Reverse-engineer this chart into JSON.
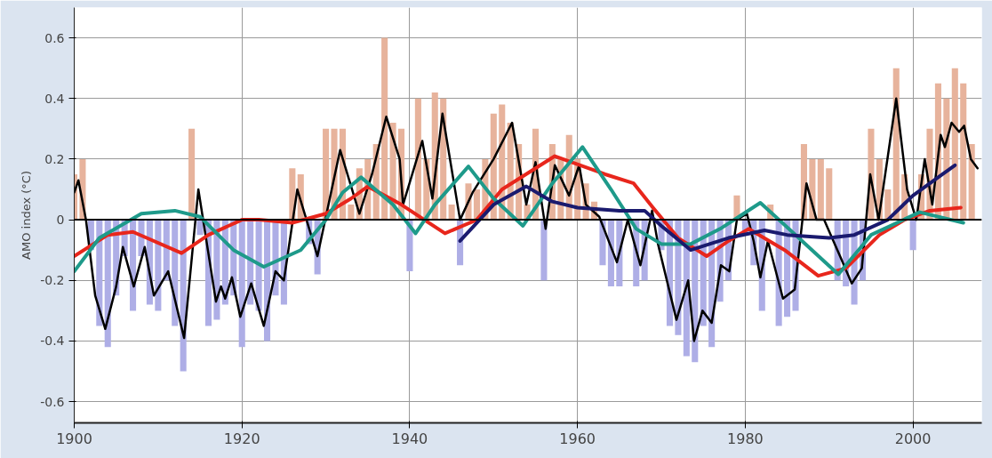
{
  "chart_data": {
    "type": "line",
    "ylabel": "AMO index (°C)",
    "xlim": [
      1900,
      2008.2
    ],
    "ylim": [
      -0.67,
      0.7
    ],
    "xticks": [
      1900,
      1920,
      1940,
      1960,
      1980,
      2000
    ],
    "yticks": [
      {
        "value": -0.6,
        "label": "-0.6"
      },
      {
        "value": -0.4,
        "label": "-0.4"
      },
      {
        "value": -0.2,
        "label": "-0.2"
      },
      0,
      0.2,
      0.4,
      0.6
    ],
    "grid": true,
    "ref_lines": [
      {
        "axis": "y",
        "value": 0,
        "color": "#000000"
      }
    ],
    "series": [
      {
        "type": "bar",
        "x": [
          1900,
          1901,
          1902,
          1903,
          1904,
          1905,
          1906,
          1907,
          1908,
          1909,
          1910,
          1911,
          1912,
          1913,
          1914,
          1915,
          1916,
          1917,
          1918,
          1919,
          1920,
          1921,
          1922,
          1923,
          1924,
          1925,
          1926,
          1927,
          1928,
          1929,
          1930,
          1931,
          1932,
          1933,
          1934,
          1935,
          1936,
          1937,
          1938,
          1939,
          1940,
          1941,
          1942,
          1943,
          1944,
          1945,
          1946,
          1947,
          1948,
          1949,
          1950,
          1951,
          1952,
          1953,
          1954,
          1955,
          1956,
          1957,
          1958,
          1959,
          1960,
          1961,
          1962,
          1963,
          1964,
          1965,
          1966,
          1967,
          1968,
          1969,
          1970,
          1971,
          1972,
          1973,
          1974,
          1975,
          1976,
          1977,
          1978,
          1979,
          1980,
          1981,
          1982,
          1983,
          1984,
          1985,
          1986,
          1987,
          1988,
          1989,
          1990,
          1991,
          1992,
          1993,
          1994,
          1995,
          1996,
          1997,
          1998,
          1999,
          2000,
          2001,
          2002,
          2003,
          2004,
          2005,
          2006,
          2007
        ],
        "values": [
          0.15,
          0.2,
          -0.1,
          -0.35,
          -0.42,
          -0.25,
          -0.12,
          -0.3,
          -0.12,
          -0.28,
          -0.3,
          -0.2,
          -0.35,
          -0.5,
          0.3,
          -0.05,
          -0.35,
          -0.33,
          -0.28,
          -0.25,
          -0.42,
          -0.28,
          -0.3,
          -0.4,
          -0.25,
          -0.28,
          0.17,
          0.15,
          -0.08,
          -0.18,
          0.3,
          0.3,
          0.3,
          0.05,
          0.17,
          0.2,
          0.25,
          0.6,
          0.32,
          0.3,
          -0.17,
          0.4,
          0.2,
          0.42,
          0.4,
          0.05,
          -0.15,
          0.12,
          0.1,
          0.2,
          0.35,
          0.38,
          0.32,
          0.25,
          0.05,
          0.3,
          -0.2,
          0.25,
          0.2,
          0.28,
          0.2,
          0.12,
          0.06,
          -0.15,
          -0.22,
          -0.22,
          null,
          -0.22,
          -0.2,
          null,
          -0.1,
          -0.35,
          -0.38,
          -0.45,
          -0.47,
          -0.35,
          -0.42,
          -0.27,
          -0.2,
          0.08,
          -0.05,
          -0.15,
          -0.3,
          0.05,
          -0.35,
          -0.32,
          -0.3,
          0.25,
          0.2,
          0.2,
          0.17,
          -0.2,
          -0.22,
          -0.28,
          -0.2,
          0.3,
          0.2,
          0.1,
          0.5,
          0.15,
          -0.1,
          0.15,
          0.3,
          0.45,
          0.4,
          0.5,
          0.45,
          0.25
        ],
        "colors": [
          "#e7b39c",
          "#e7b39c",
          "#aeaee6",
          "#aeaee6",
          "#aeaee6",
          "#aeaee6",
          "#aeaee6",
          "#aeaee6",
          "#aeaee6",
          "#aeaee6",
          "#aeaee6",
          "#aeaee6",
          "#aeaee6",
          "#aeaee6",
          "#e7b39c",
          "#aeaee6",
          "#aeaee6",
          "#aeaee6",
          "#aeaee6",
          "#aeaee6",
          "#aeaee6",
          "#aeaee6",
          "#aeaee6",
          "#aeaee6",
          "#aeaee6",
          "#aeaee6",
          "#e7b39c",
          "#e7b39c",
          "#aeaee6",
          "#aeaee6",
          "#e7b39c",
          "#e7b39c",
          "#e7b39c",
          "#e7b39c",
          "#e7b39c",
          "#e7b39c",
          "#e7b39c",
          "#e7b39c",
          "#e7b39c",
          "#e7b39c",
          "#aeaee6",
          "#e7b39c",
          "#e7b39c",
          "#e7b39c",
          "#e7b39c",
          "#e7b39c",
          "#aeaee6",
          "#e7b39c",
          "#e7b39c",
          "#e7b39c",
          "#e7b39c",
          "#e7b39c",
          "#e7b39c",
          "#e7b39c",
          "#e7b39c",
          "#e7b39c",
          "#aeaee6",
          "#e7b39c",
          "#e7b39c",
          "#e7b39c",
          "#e7b39c",
          "#e7b39c",
          "#e7b39c",
          "#aeaee6",
          "#aeaee6",
          "#aeaee6",
          "#e7b39c",
          "#aeaee6",
          "#aeaee6",
          "#e7b39c",
          "#aeaee6",
          "#aeaee6",
          "#aeaee6",
          "#aeaee6",
          "#aeaee6",
          "#aeaee6",
          "#aeaee6",
          "#aeaee6",
          "#aeaee6",
          "#e7b39c",
          "#aeaee6",
          "#aeaee6",
          "#aeaee6",
          "#e7b39c",
          "#aeaee6",
          "#aeaee6",
          "#aeaee6",
          "#e7b39c",
          "#e7b39c",
          "#e7b39c",
          "#e7b39c",
          "#aeaee6",
          "#aeaee6",
          "#aeaee6",
          "#aeaee6",
          "#e7b39c",
          "#e7b39c",
          "#e7b39c",
          "#e7b39c",
          "#e7b39c",
          "#aeaee6",
          "#e7b39c",
          "#e7b39c",
          "#e7b39c",
          "#e7b39c",
          "#e7b39c",
          "#e7b39c",
          "#e7b39c"
        ]
      },
      {
        "color": "#000000",
        "x": [
          1900,
          1900.5,
          1901.4,
          1902.5,
          1903.7,
          1905,
          1905.8,
          1907.1,
          1908.4,
          1909.5,
          1911.2,
          1913.1,
          1914.8,
          1916.9,
          1917.5,
          1918,
          1918.8,
          1919.8,
          1921.1,
          1922.6,
          1924,
          1925,
          1926.6,
          1929,
          1931.7,
          1934,
          1935.5,
          1937.2,
          1938.8,
          1939.2,
          1941.5,
          1942.7,
          1943.9,
          1946,
          1947.5,
          1950,
          1952.2,
          1953.9,
          1955,
          1956.2,
          1957.3,
          1959,
          1960.2,
          1961,
          1962.6,
          1964.7,
          1966,
          1967.5,
          1968.9,
          1969.6,
          1971.8,
          1973.2,
          1973.9,
          1974.9,
          1976,
          1977.1,
          1978.1,
          1979,
          1980.2,
          1981,
          1981.8,
          1982.7,
          1984.5,
          1985.9,
          1987.3,
          1988.5,
          1989.4,
          1991.3,
          1992.7,
          1993.9,
          1994.9,
          1995.9,
          1998,
          1999.3,
          2000.4,
          2001.4,
          2002.3,
          2003.3,
          2003.8,
          2004.6,
          2005.5,
          2006.1,
          2006.9,
          2007.7
        ],
        "values": [
          0.09,
          0.13,
          0.0,
          -0.25,
          -0.36,
          -0.22,
          -0.09,
          -0.22,
          -0.09,
          -0.25,
          -0.17,
          -0.39,
          0.1,
          -0.27,
          -0.22,
          -0.26,
          -0.19,
          -0.32,
          -0.21,
          -0.35,
          -0.17,
          -0.2,
          0.1,
          -0.12,
          0.23,
          0.02,
          0.15,
          0.34,
          0.2,
          0.05,
          0.26,
          0.07,
          0.35,
          0.0,
          0.09,
          0.2,
          0.32,
          0.05,
          0.19,
          -0.03,
          0.18,
          0.08,
          0.18,
          0.05,
          0.01,
          -0.14,
          0.0,
          -0.15,
          0.03,
          -0.08,
          -0.33,
          -0.2,
          -0.4,
          -0.3,
          -0.34,
          -0.15,
          -0.17,
          0.0,
          0.02,
          -0.07,
          -0.19,
          -0.07,
          -0.26,
          -0.23,
          0.12,
          0.0,
          0.0,
          -0.12,
          -0.21,
          -0.16,
          0.15,
          0.0,
          0.4,
          0.1,
          0.0,
          0.2,
          0.05,
          0.28,
          0.24,
          0.32,
          0.29,
          0.31,
          0.2,
          0.17
        ]
      },
      {
        "color": "#e8261c",
        "x": [
          1900,
          1904,
          1907,
          1912.8,
          1916,
          1920,
          1922,
          1926,
          1930,
          1933,
          1935,
          1939,
          1944.2,
          1948,
          1951,
          1957.3,
          1963.3,
          1966.7,
          1969,
          1972,
          1975.4,
          1978,
          1980.4,
          1984.7,
          1988.7,
          1992,
          1996,
          1999,
          2002,
          2005.7
        ],
        "values": [
          -0.12,
          -0.05,
          -0.04,
          -0.11,
          -0.05,
          0.0,
          0.0,
          -0.01,
          0.02,
          0.07,
          0.11,
          0.05,
          -0.045,
          0.0,
          0.1,
          0.21,
          0.15,
          0.12,
          0.04,
          -0.06,
          -0.12,
          -0.07,
          -0.03,
          -0.1,
          -0.185,
          -0.16,
          -0.05,
          0.0,
          0.03,
          0.04
        ]
      },
      {
        "color": "#1e9a8a",
        "x": [
          1900,
          1903,
          1908,
          1912,
          1915,
          1919,
          1922.6,
          1927,
          1930,
          1932,
          1934.2,
          1938,
          1940.7,
          1943,
          1947,
          1950,
          1953.5,
          1957,
          1960.6,
          1964,
          1967,
          1970,
          1973.5,
          1977,
          1981.8,
          1986,
          1991.1,
          1995,
          2000.8,
          2006
        ],
        "values": [
          -0.17,
          -0.06,
          0.02,
          0.03,
          0.01,
          -0.1,
          -0.155,
          -0.1,
          0.0,
          0.09,
          0.14,
          0.05,
          -0.045,
          0.05,
          0.176,
          0.07,
          -0.02,
          0.12,
          0.24,
          0.1,
          -0.03,
          -0.08,
          -0.08,
          -0.03,
          0.056,
          -0.05,
          -0.18,
          -0.05,
          0.025,
          -0.01
        ]
      },
      {
        "color": "#1a1a6e",
        "x": [
          1946,
          1950,
          1953.9,
          1957,
          1960,
          1965,
          1968,
          1970,
          1973.5,
          1978,
          1982.3,
          1985,
          1990,
          1993,
          1997,
          2000,
          2003,
          2005
        ],
        "values": [
          -0.07,
          0.05,
          0.11,
          0.06,
          0.04,
          0.03,
          0.03,
          -0.02,
          -0.1,
          -0.06,
          -0.035,
          -0.05,
          -0.06,
          -0.05,
          0.0,
          0.08,
          0.14,
          0.18
        ]
      }
    ]
  }
}
